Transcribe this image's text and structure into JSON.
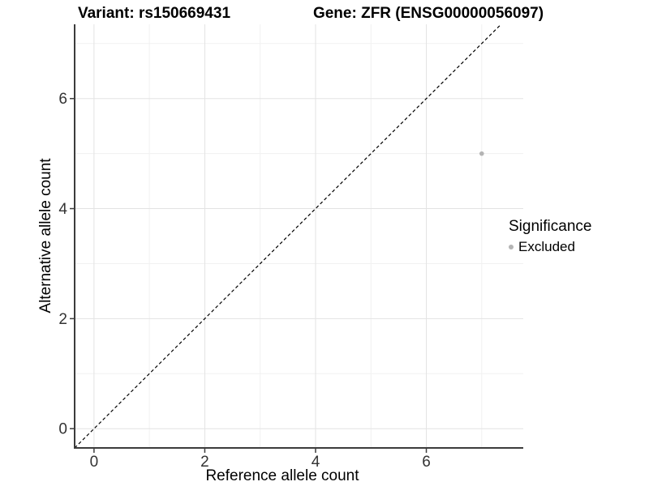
{
  "chart_data": {
    "type": "scatter",
    "titles": [
      "Variant: rs150669431",
      "Gene: ZFR (ENSG00000056097)"
    ],
    "xlabel": "Reference allele count",
    "ylabel": "Alternative allele count",
    "xlim": [
      -0.35,
      7.75
    ],
    "ylim": [
      -0.35,
      7.35
    ],
    "xticks": [
      0,
      2,
      4,
      6
    ],
    "yticks": [
      0,
      2,
      4,
      6
    ],
    "xminor": [
      1,
      3,
      5,
      7
    ],
    "yminor": [
      1,
      3,
      5,
      7
    ],
    "grid": "major+minor",
    "legend_title": "Significance",
    "legend_position": "right",
    "series": [
      {
        "name": "Excluded",
        "color": "#b4b4b4",
        "points": [
          {
            "x": 7,
            "y": 5
          }
        ]
      }
    ],
    "reference_line": {
      "kind": "identity y=x",
      "style": "dashed",
      "color": "#000000"
    }
  },
  "style_colors": {
    "axis_line": "#3c3c3c",
    "tick_mark": "#3c3c3c",
    "tick_label": "#333333",
    "major_grid": "#e3e3e3",
    "minor_grid": "#f1f1f1",
    "background": "#ffffff"
  }
}
